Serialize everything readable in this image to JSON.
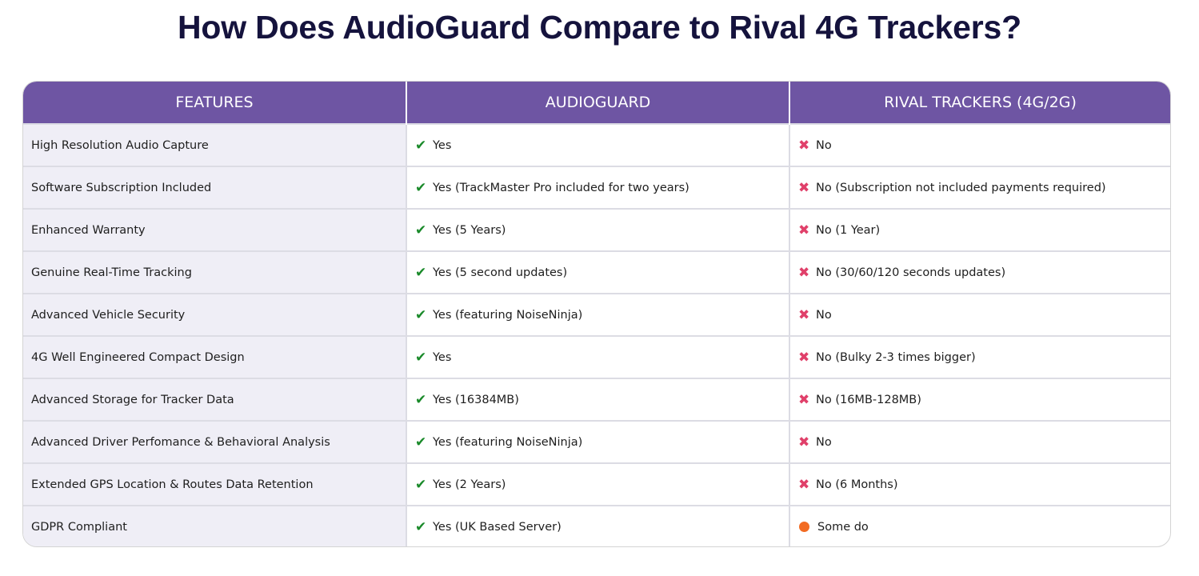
{
  "page": {
    "title": "How Does AudioGuard Compare to Rival 4G Trackers?"
  },
  "table": {
    "headers": [
      "FEATURES",
      "AUDIOGUARD",
      "RIVAL TRACKERS (4G/2G)"
    ],
    "rows": [
      {
        "feature": "High Resolution Audio Capture",
        "audioguard": "Yes",
        "rival": "No",
        "rival_status": "cross"
      },
      {
        "feature": "Software Subscription Included",
        "audioguard": "Yes (TrackMaster Pro included for two years)",
        "rival": "No (Subscription not included payments required)",
        "rival_status": "cross"
      },
      {
        "feature": "Enhanced Warranty",
        "audioguard": "Yes (5 Years)",
        "rival": "No (1 Year)",
        "rival_status": "cross"
      },
      {
        "feature": "Genuine Real-Time Tracking",
        "audioguard": "Yes (5 second updates)",
        "rival": "No (30/60/120 seconds updates)",
        "rival_status": "cross"
      },
      {
        "feature": "Advanced Vehicle Security",
        "audioguard": "Yes (featuring NoiseNinja)",
        "rival": "No",
        "rival_status": "cross"
      },
      {
        "feature": "4G Well Engineered Compact Design",
        "audioguard": "Yes",
        "rival": "No (Bulky 2-3 times bigger)",
        "rival_status": "cross"
      },
      {
        "feature": "Advanced Storage for Tracker Data",
        "audioguard": "Yes (16384MB)",
        "rival": "No (16MB-128MB)",
        "rival_status": "cross"
      },
      {
        "feature": "Advanced Driver Perfomance & Behavioral Analysis",
        "audioguard": "Yes (featuring NoiseNinja)",
        "rival": "No",
        "rival_status": "cross"
      },
      {
        "feature": "Extended GPS Location & Routes Data Retention",
        "audioguard": "Yes (2 Years)",
        "rival": "No (6 Months)",
        "rival_status": "cross"
      },
      {
        "feature": "GDPR Compliant",
        "audioguard": "Yes (UK Based Server)",
        "rival": "Some do",
        "rival_status": "partial"
      }
    ]
  },
  "icons": {
    "check": "checkmark-icon",
    "cross": "cross-icon",
    "partial": "orange-dot-icon"
  },
  "colors": {
    "header_bg": "#6e55a3",
    "title": "#15133d",
    "check": "#1a8a2a",
    "cross": "#e0406a",
    "partial": "#f26b22",
    "feature_bg": "#efeef6"
  }
}
